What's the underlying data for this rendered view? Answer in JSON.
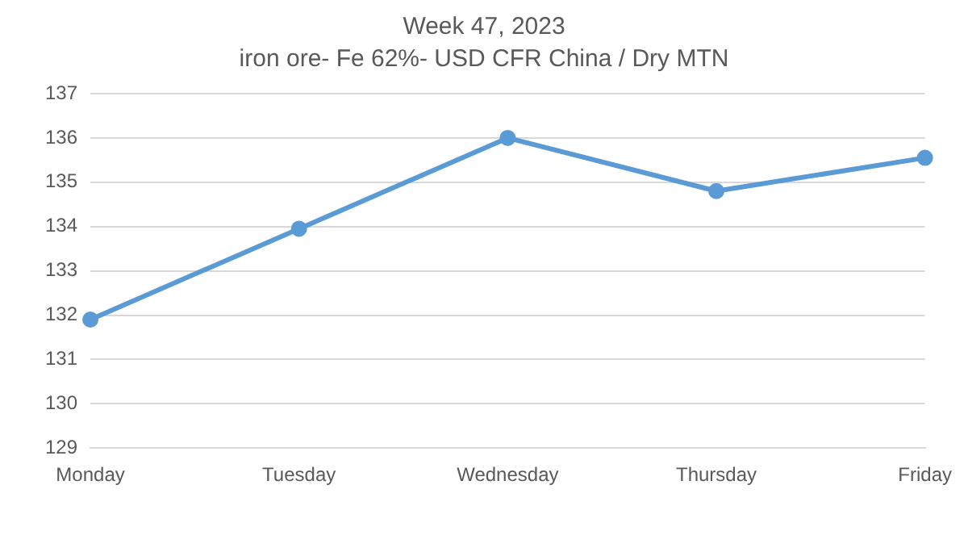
{
  "chart_data": {
    "type": "line",
    "title": "Week 47, 2023",
    "subtitle": "iron ore- Fe 62%- USD CFR China / Dry MTN",
    "categories": [
      "Monday",
      "Tuesday",
      "Wednesday",
      "Thursday",
      "Friday"
    ],
    "series": [
      {
        "color": "#5b9bd5",
        "values": [
          131.9,
          133.95,
          136.0,
          134.8,
          135.55
        ]
      }
    ],
    "ylim": [
      129,
      137
    ],
    "yticks": [
      129,
      130,
      131,
      132,
      133,
      134,
      135,
      136,
      137
    ],
    "grid": "y",
    "legend": false,
    "marker": "circle",
    "line_style": "solid"
  }
}
